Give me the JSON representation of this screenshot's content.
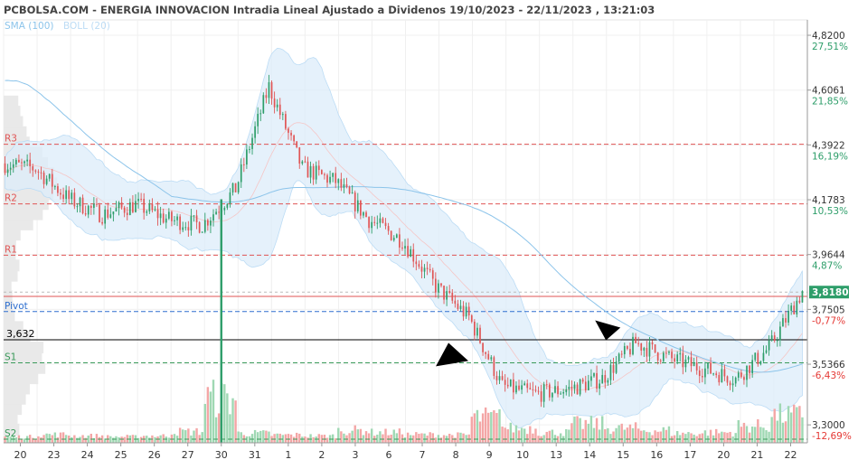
{
  "chart_data": {
    "type": "candlestick",
    "title": "PCBOLSA.COM - ENERGIA INNOVACION Intradia Lineal Ajustado a Dividenos 19/10/2023 - 22/11/2023 , 13:21:03",
    "legend": [
      {
        "label": "SMA (100)",
        "color": "#8cc4ea"
      },
      {
        "label": "BOLL (20)",
        "color": "#bcdcf5"
      }
    ],
    "ylim": [
      3.23,
      4.88
    ],
    "y_ticks": [
      {
        "price": "4,8200",
        "pct": "27,51%",
        "pct_color": "#2e9e6a"
      },
      {
        "price": "4,6061",
        "pct": "21,85%",
        "pct_color": "#2e9e6a"
      },
      {
        "price": "4,3922",
        "pct": "16,19%",
        "pct_color": "#2e9e6a"
      },
      {
        "price": "4,1783",
        "pct": "10,53%",
        "pct_color": "#2e9e6a"
      },
      {
        "price": "3,9644",
        "pct": "4,87%",
        "pct_color": "#2e9e6a"
      },
      {
        "price": "3,7505",
        "pct": "-0,77%",
        "pct_color": "#e53935"
      },
      {
        "price": "3,5366",
        "pct": "-6,43%",
        "pct_color": "#e53935"
      },
      {
        "price": "3,3000",
        "pct": "-12,69%",
        "pct_color": "#e53935"
      }
    ],
    "current_price": {
      "label": "3,8180",
      "value": 3.818,
      "color": "#2e9e6a"
    },
    "reference_line": {
      "label": "3,632",
      "value": 3.632
    },
    "pivot_levels": [
      {
        "label": "R3",
        "value": 4.395,
        "color": "#e05555"
      },
      {
        "label": "R2",
        "value": 4.162,
        "color": "#e05555"
      },
      {
        "label": "R1",
        "value": 3.962,
        "color": "#e05555"
      },
      {
        "label": "Pivot",
        "value": 3.742,
        "color": "#2f6fcf"
      },
      {
        "label": "S1",
        "value": 3.542,
        "color": "#3a9a5a"
      },
      {
        "label": "S2",
        "value": 3.244,
        "color": "#3a9a5a"
      }
    ],
    "resistance_line": {
      "value": 3.801,
      "color": "#e05555"
    },
    "x_tick_labels": [
      "20",
      "23",
      "24",
      "25",
      "26",
      "27",
      "30",
      "31",
      "1",
      "2",
      "3",
      "6",
      "7",
      "8",
      "9",
      "10",
      "13",
      "14",
      "15",
      "16",
      "17",
      "20",
      "21",
      "22"
    ],
    "daily_closes": [
      4.3,
      4.18,
      4.12,
      4.16,
      4.1,
      4.08,
      4.22,
      4.62,
      4.3,
      4.25,
      4.1,
      4.02,
      3.84,
      3.72,
      3.45,
      3.42,
      3.44,
      3.48,
      3.62,
      3.56,
      3.52,
      3.48,
      3.6,
      3.82
    ],
    "volumes": [
      0.1,
      0.15,
      0.12,
      0.1,
      0.12,
      0.22,
      1.0,
      0.18,
      0.14,
      0.12,
      0.25,
      0.2,
      0.15,
      0.14,
      0.55,
      0.3,
      0.2,
      0.4,
      0.3,
      0.25,
      0.18,
      0.2,
      0.35,
      0.6
    ]
  }
}
